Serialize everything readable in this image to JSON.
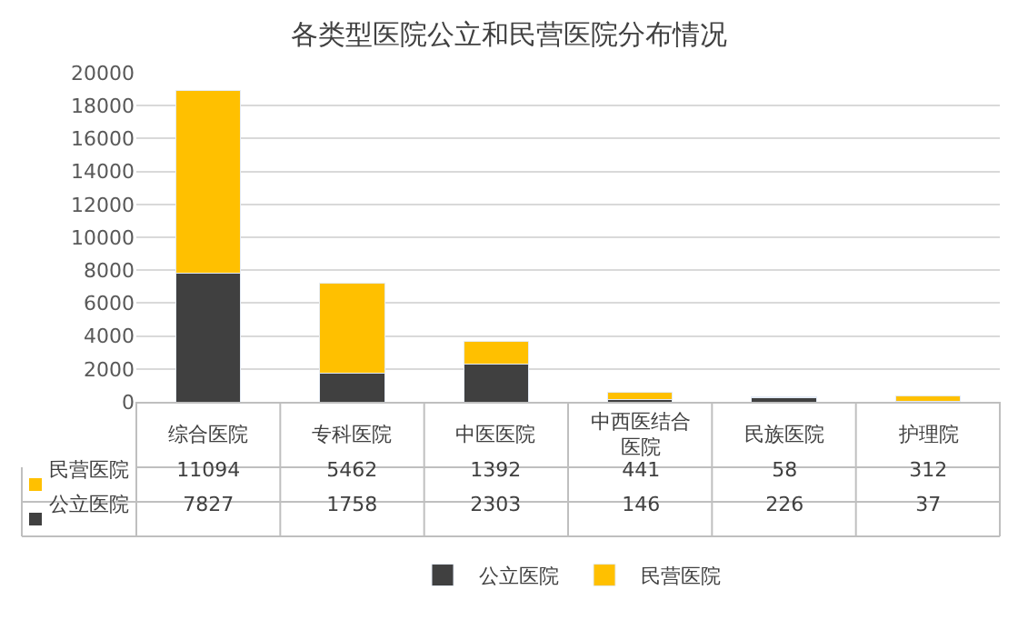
{
  "chart_data": {
    "type": "bar",
    "title": "各类型医院公立和民营医院分布情况",
    "categories": [
      "综合医院",
      "专科医院",
      "中医医院",
      "中西医结合医院",
      "民族医院",
      "护理院"
    ],
    "series": [
      {
        "name": "公立医院",
        "color": "#404040",
        "values": [
          7827,
          1758,
          2303,
          146,
          226,
          37
        ]
      },
      {
        "name": "民营医院",
        "color": "#ffc000",
        "values": [
          11094,
          5462,
          1392,
          441,
          58,
          312
        ]
      }
    ],
    "stacked": true,
    "ylim": [
      0,
      20000
    ],
    "yticks": [
      0,
      2000,
      4000,
      6000,
      8000,
      10000,
      12000,
      14000,
      16000,
      18000,
      20000
    ],
    "grid": "y",
    "legend": "bottom",
    "data_labels": true
  }
}
